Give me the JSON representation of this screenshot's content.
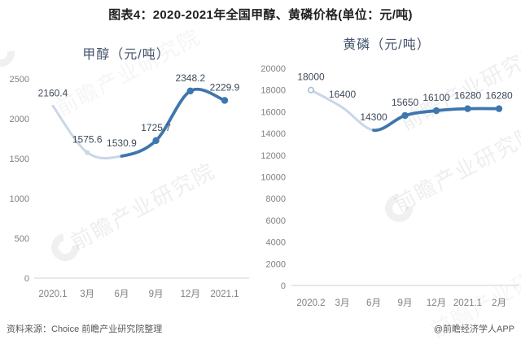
{
  "page": {
    "title": "图表4：2020-2021年全国甲醇、黄磷价格(单位：元/吨)"
  },
  "watermark": {
    "text": "前瞻产业研究院",
    "logo": "crescent-ring"
  },
  "footer": {
    "source": "资料来源：Choice 前瞻产业研究院整理",
    "credit": "@前瞻经济学人APP"
  },
  "chart_data": [
    {
      "type": "line",
      "title": "甲醇（元/吨）",
      "categories": [
        "2020.1",
        "3月",
        "6月",
        "9月",
        "12月",
        "2021.1"
      ],
      "values": [
        2160.4,
        1575.6,
        1530.9,
        1725.7,
        2348.2,
        2229.9
      ],
      "data_labels": [
        "2160.4",
        "1575.6",
        "1530.9",
        "1725.7",
        "2348.2",
        "2229.9"
      ],
      "ylim": [
        0,
        2500
      ],
      "ytick_step": 500,
      "grid": false,
      "legend": "none",
      "smooth": true,
      "line_style": {
        "early_color": "#c9d7e7",
        "recent_color": "#3e76ae",
        "split_index": 2
      },
      "markers": {
        "solid": [
          3,
          4,
          5
        ],
        "light": [
          1
        ],
        "hollow": []
      },
      "label_color": "#3f4a5a",
      "tick_color": "#7f7f7f",
      "axis_color": "#d9d9d9"
    },
    {
      "type": "line",
      "title": "黄磷（元/吨）",
      "categories": [
        "2020.2",
        "3月",
        "6月",
        "9月",
        "12月",
        "2021.1",
        "2月"
      ],
      "values": [
        18000,
        16400,
        14300,
        15650,
        16100,
        16280,
        16280
      ],
      "data_labels": [
        "18000",
        "16400",
        "14300",
        "15650",
        "16100",
        "16280",
        "16280"
      ],
      "ylim": [
        0,
        20000
      ],
      "ytick_step": 2000,
      "grid": false,
      "legend": "none",
      "smooth": true,
      "line_style": {
        "early_color": "#c9d7e7",
        "recent_color": "#3e76ae",
        "split_index": 2
      },
      "markers": {
        "solid": [
          3,
          4,
          5,
          6
        ],
        "light": [],
        "hollow": [
          0
        ]
      },
      "label_color": "#3f4a5a",
      "tick_color": "#7f7f7f",
      "axis_color": "#d9d9d9"
    }
  ]
}
